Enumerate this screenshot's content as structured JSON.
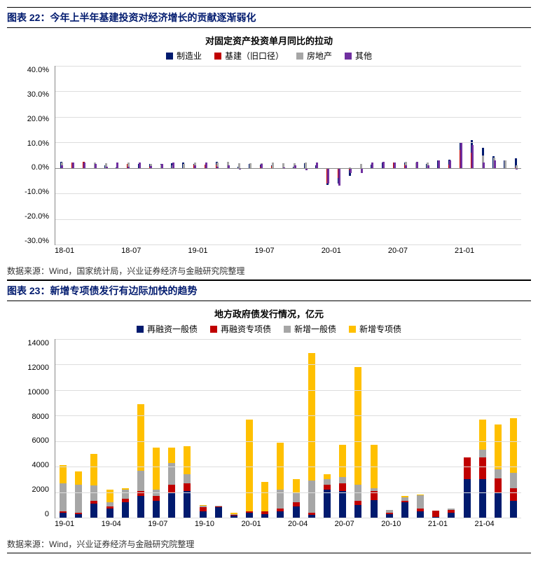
{
  "fig22": {
    "header": "图表 22：今年上半年基建投资对经济增长的贡献逐渐弱化",
    "title": "对固定资产投资单月同比的拉动",
    "type": "grouped-bar",
    "legend": [
      {
        "label": "制造业",
        "color": "#001a6e"
      },
      {
        "label": "基建（旧口径）",
        "color": "#c00000"
      },
      {
        "label": "房地产",
        "color": "#a6a6a6"
      },
      {
        "label": "其他",
        "color": "#7030a0"
      }
    ],
    "y": {
      "min": -30,
      "max": 40,
      "step": 10,
      "suffix": ".0%"
    },
    "x_labels": [
      "18-01",
      "",
      "",
      "",
      "",
      "",
      "18-07",
      "",
      "",
      "",
      "",
      "",
      "19-01",
      "",
      "",
      "",
      "",
      "",
      "19-07",
      "",
      "",
      "",
      "",
      "",
      "20-01",
      "",
      "",
      "",
      "",
      "",
      "20-07",
      "",
      "",
      "",
      "",
      "",
      "21-01",
      "",
      "",
      "",
      "",
      ""
    ],
    "series_colors": [
      "#001a6e",
      "#c00000",
      "#a6a6a6",
      "#7030a0"
    ],
    "data": [
      [
        2.4,
        0.5,
        1.9,
        -0.1,
        0.9,
        0.2,
        1.7,
        1.5,
        1.7,
        1.6,
        1.8,
        2.0,
        1.5,
        -0.2,
        2.3,
        0.9,
        0.6,
        1.6,
        1.3,
        1.1,
        1.7,
        0.6,
        1.8,
        1.1,
        -6.8,
        -6.0,
        -3.2,
        0.0,
        1.2,
        2.1,
        1.9,
        2.1,
        1.2,
        1.7,
        3.0,
        3.1,
        10.2,
        11.0,
        8.0,
        4.5,
        3.0,
        3.8
      ],
      [
        2.0,
        2.0,
        2.3,
        1.5,
        0.6,
        1.0,
        1.5,
        -0.3,
        0.4,
        0.9,
        0.8,
        1.5,
        1.2,
        1.2,
        1.2,
        0.4,
        1.1,
        1.4,
        0.4,
        0.7,
        1.2,
        0.2,
        1.1,
        1.2,
        -6.0,
        -4.0,
        -1.0,
        1.2,
        2.0,
        1.8,
        2.0,
        1.2,
        1.0,
        1.2,
        1.2,
        1.2,
        7.0,
        6.0,
        4.0,
        1.0,
        -0.2,
        0.2
      ],
      [
        2.2,
        1.8,
        2.1,
        2.1,
        1.8,
        1.5,
        2.2,
        1.8,
        1.7,
        1.4,
        1.1,
        1.6,
        2.0,
        2.0,
        2.0,
        2.3,
        1.8,
        1.9,
        1.9,
        2.0,
        1.9,
        1.8,
        2.2,
        1.7,
        -3.0,
        -3.0,
        0.3,
        1.5,
        1.8,
        1.4,
        2.1,
        2.3,
        2.0,
        2.1,
        2.0,
        2.0,
        7.0,
        8.0,
        5.0,
        4.0,
        3.0,
        1.0
      ],
      [
        1.0,
        2.2,
        2.0,
        1.7,
        0.5,
        2.2,
        0.4,
        2.0,
        0.7,
        1.7,
        2.0,
        0.0,
        1.1,
        2.0,
        0.5,
        1.0,
        -0.5,
        0.0,
        1.6,
        0.0,
        0.2,
        1.0,
        -1.0,
        2.2,
        -6.0,
        -7.0,
        -2.0,
        -2.0,
        2.0,
        2.5,
        2.0,
        1.0,
        2.5,
        1.0,
        3.0,
        3.0,
        10.0,
        9.0,
        2.0,
        3.0,
        0.0,
        -0.5
      ]
    ],
    "source": "数据来源：Wind，国家统计局，兴业证券经济与金融研究院整理"
  },
  "fig23": {
    "header": "图表 23：新增专项债发行有边际加快的趋势",
    "title": "地方政府债发行情况，亿元",
    "type": "stacked-bar",
    "legend": [
      {
        "label": "再融资一般债",
        "color": "#001a6e"
      },
      {
        "label": "再融资专项债",
        "color": "#c00000"
      },
      {
        "label": "新增一般债",
        "color": "#a6a6a6"
      },
      {
        "label": "新增专项债",
        "color": "#ffc000"
      }
    ],
    "y": {
      "min": 0,
      "max": 14000,
      "step": 2000,
      "suffix": ""
    },
    "x_labels": [
      "19-01",
      "",
      "",
      "19-04",
      "",
      "",
      "19-07",
      "",
      "",
      "19-10",
      "",
      "",
      "20-01",
      "",
      "",
      "20-04",
      "",
      "",
      "20-07",
      "",
      "",
      "20-10",
      "",
      "",
      "21-01",
      "",
      "",
      "21-04",
      "",
      ""
    ],
    "series_colors": [
      "#001a6e",
      "#c00000",
      "#a6a6a6",
      "#ffc000"
    ],
    "data": [
      [
        400,
        300,
        1100,
        700,
        1200,
        1700,
        1300,
        2000,
        2100,
        500,
        800,
        150,
        400,
        300,
        500,
        900,
        200,
        2200,
        2100,
        1000,
        1400,
        300,
        1200,
        500,
        50,
        400,
        3000,
        3000,
        2000,
        1300
      ],
      [
        100,
        100,
        200,
        200,
        300,
        400,
        400,
        600,
        600,
        300,
        100,
        50,
        100,
        200,
        200,
        300,
        200,
        400,
        600,
        300,
        700,
        100,
        100,
        200,
        500,
        200,
        1700,
        1700,
        1100,
        1000
      ],
      [
        2200,
        2200,
        1200,
        300,
        700,
        1600,
        500,
        1700,
        700,
        150,
        50,
        80,
        0,
        0,
        1500,
        800,
        2500,
        400,
        500,
        1300,
        200,
        200,
        300,
        1100,
        0,
        100,
        0,
        600,
        700,
        1200
      ],
      [
        1400,
        1000,
        2500,
        1000,
        100,
        5200,
        3300,
        1200,
        2200,
        50,
        0,
        100,
        7200,
        2300,
        3700,
        1000,
        10000,
        400,
        2500,
        9200,
        3400,
        0,
        100,
        30,
        0,
        0,
        0,
        2400,
        3500,
        4300
      ]
    ],
    "source": "数据来源：Wind，兴业证券经济与金融研究院整理"
  },
  "style": {
    "header_color": "#001a6e",
    "grid_color": "#dddddd",
    "axis_color": "#888888",
    "background": "#ffffff",
    "label_fontsize": 11,
    "title_fontsize": 13
  }
}
